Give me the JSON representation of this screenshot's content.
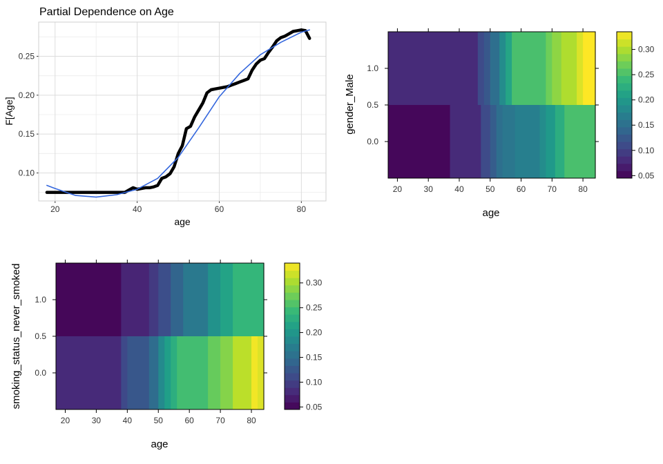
{
  "chart_data": [
    {
      "type": "line",
      "title": "Partial Dependence on Age",
      "xlabel": "age",
      "ylabel": "F[Age]",
      "xlim": [
        16,
        86
      ],
      "ylim": [
        0.064,
        0.294
      ],
      "xticks": [
        20,
        40,
        60,
        80
      ],
      "yticks": [
        0.1,
        0.15,
        0.2,
        0.25
      ],
      "ytick_labels": [
        "0.10",
        "0.15",
        "0.20",
        "0.25"
      ],
      "grid": true,
      "series": [
        {
          "style": "partial-dependence",
          "color": "#000000",
          "x": [
            18,
            20,
            25,
            30,
            35,
            37,
            38,
            39,
            40,
            41,
            42,
            43,
            44,
            45,
            46,
            47,
            48,
            49,
            50,
            51,
            52,
            53,
            54,
            55,
            56,
            57,
            58,
            59,
            60,
            61,
            62,
            63,
            64,
            65,
            66,
            67,
            68,
            69,
            70,
            71,
            72,
            73,
            74,
            75,
            76,
            77,
            78,
            79,
            80,
            81,
            82
          ],
          "y": [
            0.075,
            0.075,
            0.075,
            0.075,
            0.075,
            0.075,
            0.078,
            0.081,
            0.079,
            0.08,
            0.081,
            0.081,
            0.082,
            0.084,
            0.093,
            0.095,
            0.099,
            0.108,
            0.125,
            0.135,
            0.157,
            0.16,
            0.172,
            0.181,
            0.19,
            0.203,
            0.207,
            0.208,
            0.209,
            0.21,
            0.211,
            0.213,
            0.215,
            0.217,
            0.219,
            0.221,
            0.232,
            0.24,
            0.245,
            0.247,
            0.255,
            0.262,
            0.27,
            0.274,
            0.276,
            0.279,
            0.282,
            0.283,
            0.284,
            0.283,
            0.273
          ]
        },
        {
          "style": "smooth",
          "color": "#3366dd",
          "x": [
            18,
            20,
            25,
            30,
            35,
            40,
            45,
            50,
            55,
            60,
            65,
            70,
            75,
            80,
            82
          ],
          "y": [
            0.084,
            0.08,
            0.071,
            0.069,
            0.072,
            0.079,
            0.093,
            0.12,
            0.158,
            0.198,
            0.228,
            0.252,
            0.268,
            0.281,
            0.284
          ]
        }
      ]
    },
    {
      "type": "heatmap",
      "xlabel": "age",
      "ylabel": "gender_Male",
      "xlim": [
        17,
        84
      ],
      "ylim": [
        -0.5,
        1.5
      ],
      "xticks": [
        20,
        30,
        40,
        50,
        60,
        70,
        80
      ],
      "yticks": [
        0.0,
        0.5,
        1.0
      ],
      "ytick_labels": [
        "0.0",
        "0.5",
        "1.0"
      ],
      "rows": [
        {
          "y_range": [
            0.5,
            1.5
          ],
          "cells": [
            {
              "x0": 17,
              "x1": 46,
              "value": 0.08
            },
            {
              "x0": 46,
              "x1": 48,
              "value": 0.11
            },
            {
              "x0": 48,
              "x1": 50,
              "value": 0.125
            },
            {
              "x0": 50,
              "x1": 53,
              "value": 0.15
            },
            {
              "x0": 53,
              "x1": 55,
              "value": 0.185
            },
            {
              "x0": 55,
              "x1": 57,
              "value": 0.215
            },
            {
              "x0": 57,
              "x1": 68,
              "value": 0.25
            },
            {
              "x0": 68,
              "x1": 70,
              "value": 0.27
            },
            {
              "x0": 70,
              "x1": 73,
              "value": 0.285
            },
            {
              "x0": 73,
              "x1": 78,
              "value": 0.3
            },
            {
              "x0": 78,
              "x1": 80,
              "value": 0.32
            },
            {
              "x0": 80,
              "x1": 84,
              "value": 0.335
            }
          ]
        },
        {
          "y_range": [
            -0.5,
            0.5
          ],
          "cells": [
            {
              "x0": 17,
              "x1": 37,
              "value": 0.05
            },
            {
              "x0": 37,
              "x1": 47,
              "value": 0.08
            },
            {
              "x0": 47,
              "x1": 50,
              "value": 0.11
            },
            {
              "x0": 50,
              "x1": 52,
              "value": 0.13
            },
            {
              "x0": 52,
              "x1": 54,
              "value": 0.15
            },
            {
              "x0": 54,
              "x1": 58,
              "value": 0.16
            },
            {
              "x0": 58,
              "x1": 66,
              "value": 0.17
            },
            {
              "x0": 66,
              "x1": 68,
              "value": 0.185
            },
            {
              "x0": 68,
              "x1": 71,
              "value": 0.2
            },
            {
              "x0": 71,
              "x1": 74,
              "value": 0.225
            },
            {
              "x0": 74,
              "x1": 84,
              "value": 0.25
            }
          ]
        }
      ],
      "colorbar": {
        "range": [
          0.045,
          0.335
        ],
        "ticks": [
          0.05,
          0.1,
          0.15,
          0.2,
          0.25,
          0.3
        ],
        "tick_labels": [
          "0.05",
          "0.10",
          "0.15",
          "0.20",
          "0.25",
          "0.30"
        ]
      }
    },
    {
      "type": "heatmap",
      "xlabel": "age",
      "ylabel": "smoking_status_never_smoked",
      "xlim": [
        17,
        84
      ],
      "ylim": [
        -0.5,
        1.5
      ],
      "xticks": [
        20,
        30,
        40,
        50,
        60,
        70,
        80
      ],
      "yticks": [
        0.0,
        0.5,
        1.0
      ],
      "ytick_labels": [
        "0.0",
        "0.5",
        "1.0"
      ],
      "rows": [
        {
          "y_range": [
            0.5,
            1.5
          ],
          "cells": [
            {
              "x0": 17,
              "x1": 38,
              "value": 0.05
            },
            {
              "x0": 38,
              "x1": 47,
              "value": 0.075
            },
            {
              "x0": 47,
              "x1": 50,
              "value": 0.095
            },
            {
              "x0": 50,
              "x1": 54,
              "value": 0.115
            },
            {
              "x0": 54,
              "x1": 58,
              "value": 0.14
            },
            {
              "x0": 58,
              "x1": 66,
              "value": 0.165
            },
            {
              "x0": 66,
              "x1": 70,
              "value": 0.195
            },
            {
              "x0": 70,
              "x1": 74,
              "value": 0.215
            },
            {
              "x0": 74,
              "x1": 84,
              "value": 0.24
            }
          ]
        },
        {
          "y_range": [
            -0.5,
            0.5
          ],
          "cells": [
            {
              "x0": 17,
              "x1": 38,
              "value": 0.08
            },
            {
              "x0": 38,
              "x1": 40,
              "value": 0.11
            },
            {
              "x0": 40,
              "x1": 47,
              "value": 0.125
            },
            {
              "x0": 47,
              "x1": 50,
              "value": 0.15
            },
            {
              "x0": 50,
              "x1": 52,
              "value": 0.185
            },
            {
              "x0": 52,
              "x1": 54,
              "value": 0.21
            },
            {
              "x0": 54,
              "x1": 56,
              "value": 0.23
            },
            {
              "x0": 56,
              "x1": 66,
              "value": 0.25
            },
            {
              "x0": 66,
              "x1": 70,
              "value": 0.27
            },
            {
              "x0": 70,
              "x1": 74,
              "value": 0.285
            },
            {
              "x0": 74,
              "x1": 80,
              "value": 0.31
            },
            {
              "x0": 80,
              "x1": 82,
              "value": 0.335
            },
            {
              "x0": 82,
              "x1": 84,
              "value": 0.325
            }
          ]
        }
      ],
      "colorbar": {
        "range": [
          0.045,
          0.34
        ],
        "ticks": [
          0.05,
          0.1,
          0.15,
          0.2,
          0.25,
          0.3
        ],
        "tick_labels": [
          "0.05",
          "0.10",
          "0.15",
          "0.20",
          "0.25",
          "0.30"
        ]
      }
    }
  ]
}
